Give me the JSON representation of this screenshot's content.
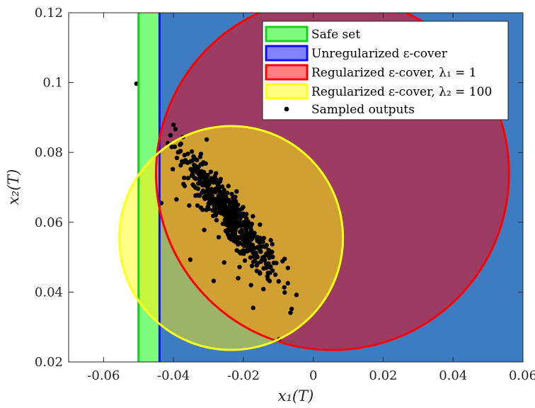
{
  "chart_data": {
    "type": "scatter",
    "xlabel": "x₁(T)",
    "ylabel": "x₂(T)",
    "xlim": [
      -0.07,
      0.06
    ],
    "ylim": [
      0.02,
      0.12
    ],
    "xticks": [
      -0.06,
      -0.04,
      -0.02,
      0,
      0.02,
      0.04,
      0.06
    ],
    "xtick_labels": [
      "-0.06",
      "-0.04",
      "-0.02",
      "0",
      "0.02",
      "0.04",
      "0.06"
    ],
    "yticks": [
      0.02,
      0.04,
      0.06,
      0.08,
      0.1,
      0.12
    ],
    "ytick_labels": [
      "0.02",
      "0.04",
      "0.06",
      "0.08",
      "0.1",
      "0.12"
    ],
    "grid": false,
    "legend_position": "top-right",
    "regions": [
      {
        "name": "Safe set",
        "kind": "halfplane",
        "x_min": -0.05,
        "fill": "#7efc7e",
        "stroke": "#19d019"
      },
      {
        "name": "Unregularized ε-cover",
        "kind": "halfplane",
        "x_min": -0.044,
        "fill": "#3e7cc1",
        "stroke": "#0c0cff",
        "legend_fill": "#8282ff"
      },
      {
        "name": "Regularized ε-cover, λ₁ = 1",
        "kind": "circle",
        "cx": 0.0055,
        "cy": 0.074,
        "r": 0.0505,
        "fill": "#9c3c62",
        "stroke": "#ff0000",
        "legend_fill": "#ff8080"
      },
      {
        "name": "Regularized ε-cover, λ₂ = 100",
        "kind": "circle",
        "cx": -0.0235,
        "cy": 0.0555,
        "r": 0.032,
        "stroke": "#ffff1a",
        "legend_fill": "#ffff80",
        "fills": {
          "on_white": "#ffff88",
          "on_safe": "#c8f640",
          "on_blue": "#9cb468",
          "on_red": "#d0a033"
        }
      }
    ],
    "series": [
      {
        "name": "Sampled outputs",
        "color": "#000000",
        "cluster": {
          "n": 520,
          "center": [
            -0.024,
            0.062
          ],
          "sd_major": 0.0095,
          "sd_minor": 0.0032,
          "angle_deg": -45
        },
        "points": [
          [
            -0.0443,
            0.0802
          ],
          [
            -0.0435,
            0.0655
          ],
          [
            -0.0352,
            0.0493
          ],
          [
            -0.0305,
            0.0837
          ],
          [
            -0.0255,
            0.0485
          ],
          [
            -0.0172,
            0.0355
          ],
          [
            -0.0048,
            0.0392
          ],
          [
            -0.0098,
            0.0265
          ],
          [
            -0.0215,
            0.044
          ],
          [
            -0.0142,
            0.0468
          ],
          [
            -0.0333,
            0.0778
          ],
          [
            -0.0118,
            0.0515
          ],
          [
            -0.0285,
            0.0432
          ],
          [
            -0.0312,
            0.0578
          ],
          [
            -0.0402,
            0.0752
          ],
          [
            -0.0368,
            0.0704
          ],
          [
            -0.0128,
            0.0482
          ],
          [
            -0.0082,
            0.0495
          ],
          [
            -0.0178,
            0.042
          ],
          [
            -0.0355,
            0.0648
          ]
        ]
      }
    ],
    "legend": [
      {
        "label": "Safe set",
        "swatch": "box"
      },
      {
        "label": "Unregularized ε-cover",
        "swatch": "box"
      },
      {
        "label": "Regularized ε-cover, λ₁ = 1",
        "swatch": "box"
      },
      {
        "label": "Regularized ε-cover, λ₂ = 100",
        "swatch": "box"
      },
      {
        "label": "Sampled outputs",
        "swatch": "dot"
      }
    ]
  }
}
